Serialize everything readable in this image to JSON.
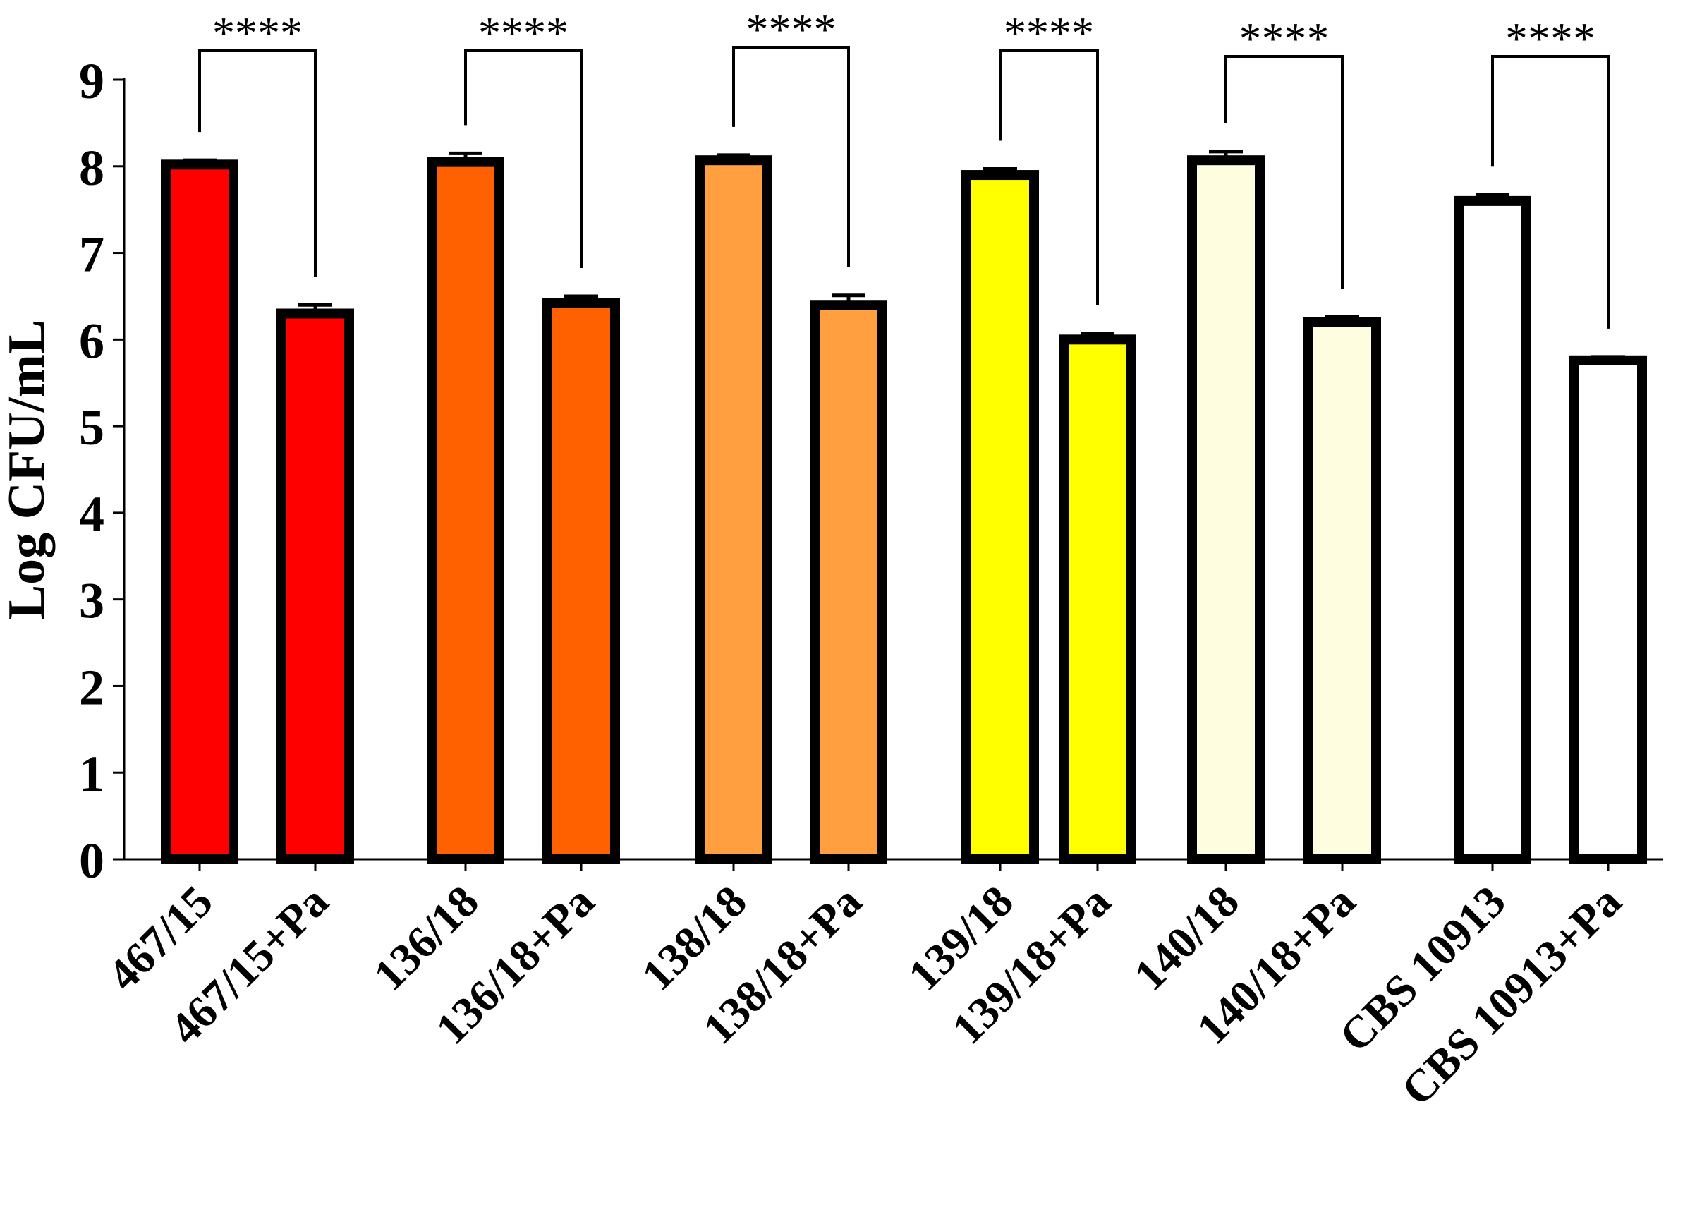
{
  "chart_data": {
    "type": "bar",
    "title": "",
    "xlabel": "",
    "ylabel": "Log CFU/mL",
    "ylim": [
      0,
      9
    ],
    "yticks": [
      "0",
      "1",
      "2",
      "3",
      "4",
      "5",
      "6",
      "7",
      "8",
      "9"
    ],
    "grid": false,
    "legend": "none",
    "categories": [
      "467/15",
      "467/15+Pa",
      "136/18",
      "136/18+Pa",
      "138/18",
      "138/18+Pa",
      "139/18",
      "139/18+Pa",
      "140/18",
      "140/18+Pa",
      "CBS 10913",
      "CBS 10913+Pa"
    ],
    "values": [
      8.02,
      6.3,
      8.05,
      6.42,
      8.07,
      6.4,
      7.9,
      6.0,
      8.07,
      6.2,
      7.6,
      5.76
    ],
    "errors": [
      0.05,
      0.1,
      0.1,
      0.08,
      0.06,
      0.11,
      0.07,
      0.07,
      0.1,
      0.06,
      0.07,
      0.04
    ],
    "colors": [
      "#ff0000",
      "#ff0000",
      "#ff6000",
      "#ff6000",
      "#ff9f40",
      "#ff9f40",
      "#ffff00",
      "#ffff00",
      "#fffde0",
      "#fffde0",
      "#ffffff",
      "#ffffff"
    ],
    "comparisons": [
      {
        "from": 0,
        "to": 1,
        "label": "****"
      },
      {
        "from": 2,
        "to": 3,
        "label": "****"
      },
      {
        "from": 4,
        "to": 5,
        "label": "****"
      },
      {
        "from": 6,
        "to": 7,
        "label": "****"
      },
      {
        "from": 8,
        "to": 9,
        "label": "****"
      },
      {
        "from": 10,
        "to": 11,
        "label": "****"
      }
    ]
  }
}
